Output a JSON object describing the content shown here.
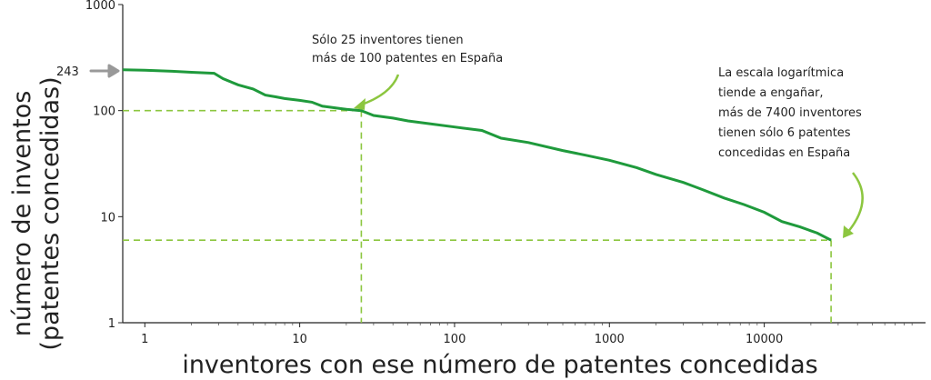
{
  "chart_data": {
    "type": "line",
    "scale": "log-log",
    "xlabel": "inventores con ese número de patentes concedidas",
    "ylabel_line1": "número de inventos",
    "ylabel_line2": "(patentes concedidas)",
    "xlim": [
      0.72,
      110000
    ],
    "ylim": [
      1,
      1000
    ],
    "x_ticks": [
      {
        "value": 1,
        "label": "1"
      },
      {
        "value": 10,
        "label": "10"
      },
      {
        "value": 100,
        "label": "100"
      },
      {
        "value": 1000,
        "label": "1000"
      },
      {
        "value": 10000,
        "label": "10000"
      }
    ],
    "y_ticks": [
      {
        "value": 1,
        "label": "1"
      },
      {
        "value": 10,
        "label": "10"
      },
      {
        "value": 100,
        "label": "100"
      },
      {
        "value": 1000,
        "label": "1000"
      }
    ],
    "grid": false,
    "line_color": "#1f9a3c",
    "guide_color": "#8cc63f",
    "series": [
      {
        "x": [
          0.72,
          1,
          1.5,
          2,
          2.8,
          3.2,
          4,
          5,
          6,
          7,
          8,
          10,
          12,
          14,
          18,
          20,
          25,
          30,
          40,
          50,
          70,
          100,
          150,
          200,
          300,
          500,
          700,
          1000,
          1500,
          2000,
          3000,
          4000,
          5500,
          7400,
          10000,
          13000,
          17000,
          22000,
          27000
        ],
        "y": [
          243,
          240,
          235,
          230,
          225,
          200,
          175,
          160,
          140,
          135,
          130,
          125,
          120,
          110,
          105,
          103,
          100,
          90,
          85,
          80,
          75,
          70,
          65,
          55,
          50,
          42,
          38,
          34,
          29,
          25,
          21,
          18,
          15,
          13,
          11,
          9,
          8,
          7,
          6
        ]
      }
    ],
    "annotations": {
      "arrow_value": "243",
      "note1_line1": "Sólo 25 inventores tienen",
      "note1_line2": "más de 100 patentes en España",
      "note1_point": {
        "x": 25,
        "y": 100
      },
      "note2_line1": "La escala logarítmica",
      "note2_line2": "tiende a engañar,",
      "note2_line3": "más de 7400 inventores",
      "note2_line4": "tienen sólo 6 patentes",
      "note2_line5": "concedidas en España",
      "note2_point": {
        "x": 27000,
        "y": 6
      }
    }
  }
}
